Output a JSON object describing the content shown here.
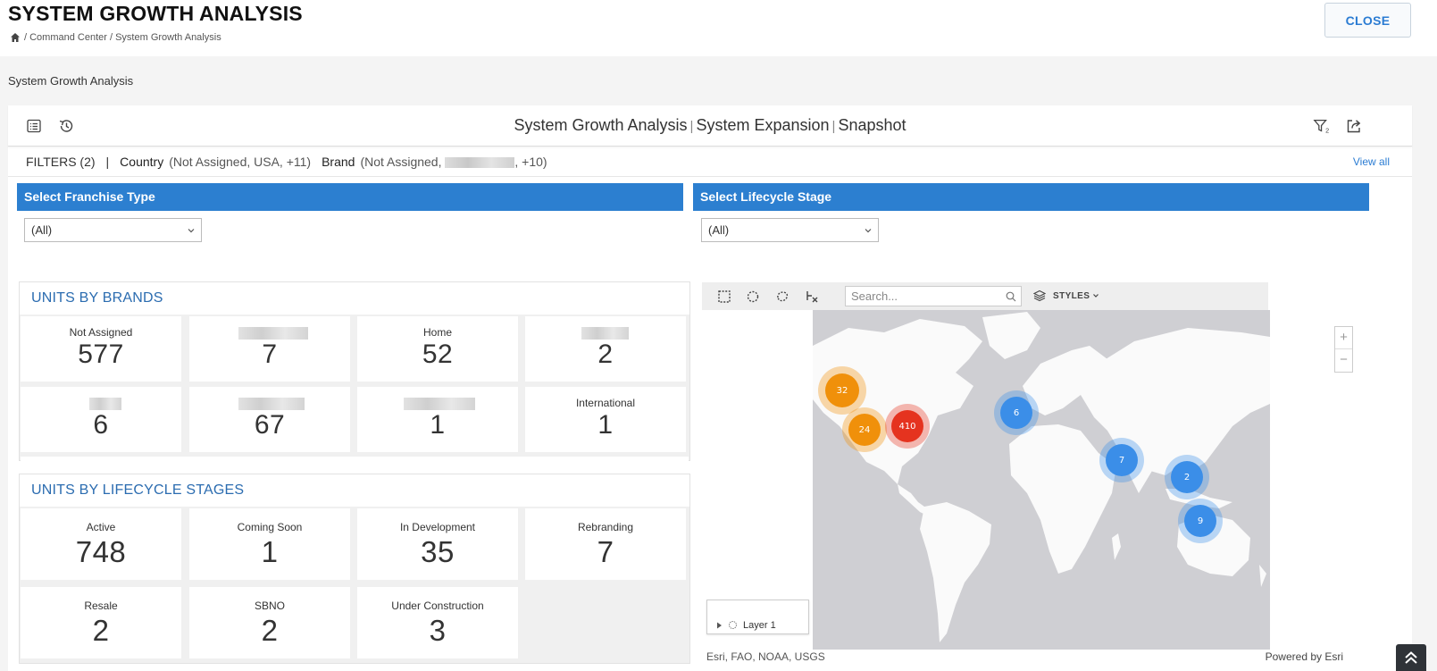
{
  "header": {
    "title": "SYSTEM GROWTH ANALYSIS",
    "breadcrumb": "/ Command Center / System Growth Analysis",
    "close_label": "CLOSE"
  },
  "section_label": "System Growth Analysis",
  "dashboard": {
    "title_part1": "System Growth Analysis",
    "title_part2": "System Expansion",
    "title_part3": "Snapshot",
    "separator": "|",
    "filter_count_badge": "2"
  },
  "filters": {
    "label": "FILTERS (2)",
    "divider": "|",
    "country_label": "Country",
    "country_value": "(Not Assigned, USA, +11)",
    "brand_label": "Brand",
    "brand_value_start": "(Not Assigned,",
    "brand_value_end": ", +10)",
    "view_all": "View all"
  },
  "selectors": {
    "franchise_title": "Select Franchise Type",
    "franchise_value": "(All)",
    "lifecycle_title": "Select Lifecycle Stage",
    "lifecycle_value": "(All)"
  },
  "units_by_brands": {
    "title": "UNITS BY BRANDS",
    "tiles": [
      {
        "label": "Not Assigned",
        "value": "577"
      },
      {
        "label": "",
        "value": "7"
      },
      {
        "label": "Home",
        "value": "52"
      },
      {
        "label": "",
        "value": "2"
      },
      {
        "label": "",
        "value": "6"
      },
      {
        "label": "",
        "value": "67"
      },
      {
        "label": "",
        "value": "1"
      },
      {
        "label": "International",
        "value": "1"
      }
    ]
  },
  "units_by_lifecycle": {
    "title": "UNITS BY LIFECYCLE STAGES",
    "tiles": [
      {
        "label": "Active",
        "value": "748"
      },
      {
        "label": "Coming Soon",
        "value": "1"
      },
      {
        "label": "In Development",
        "value": "35"
      },
      {
        "label": "Rebranding",
        "value": "7"
      },
      {
        "label": "Resale",
        "value": "2"
      },
      {
        "label": "SBNO",
        "value": "2"
      },
      {
        "label": "Under Construction",
        "value": "3"
      }
    ]
  },
  "map": {
    "search_placeholder": "Search...",
    "styles_label": "STYLES",
    "zoom_in": "+",
    "zoom_out": "−",
    "layer_label": "Layer 1",
    "attribution": "Esri, FAO, NOAA, USGS",
    "powered_by": "Powered by Esri",
    "clusters": [
      {
        "count": "32",
        "color": "#f0900a"
      },
      {
        "count": "24",
        "color": "#f0900a"
      },
      {
        "count": "410",
        "color": "#e5331f"
      },
      {
        "count": "6",
        "color": "#3b8ee8"
      },
      {
        "count": "7",
        "color": "#3b8ee8"
      },
      {
        "count": "2",
        "color": "#3b8ee8"
      },
      {
        "count": "9",
        "color": "#3b8ee8"
      }
    ]
  }
}
